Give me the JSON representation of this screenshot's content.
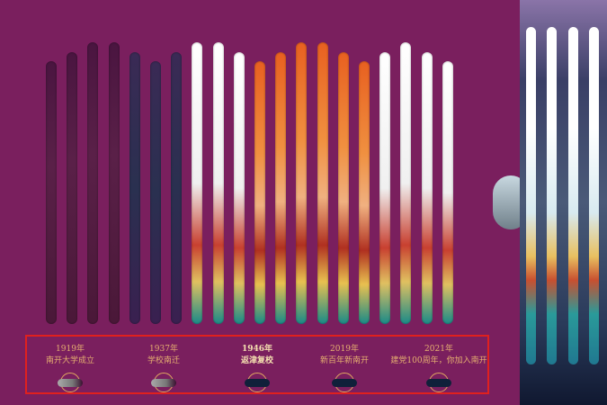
{
  "timeline": [
    {
      "year": "1919年",
      "event": "南开大学成立",
      "state": "visited"
    },
    {
      "year": "1937年",
      "event": "学校南迁",
      "state": "visited"
    },
    {
      "year": "1946年",
      "event": "返津复校",
      "state": "current"
    },
    {
      "year": "2019年",
      "event": "新百年新南开",
      "state": "upcoming"
    },
    {
      "year": "2021年",
      "event": "建党100周年，你加入南开",
      "state": "upcoming"
    }
  ],
  "colors": {
    "background": "#7a1f5e",
    "highlight_border": "#e0201e",
    "label": "#e6b070"
  }
}
